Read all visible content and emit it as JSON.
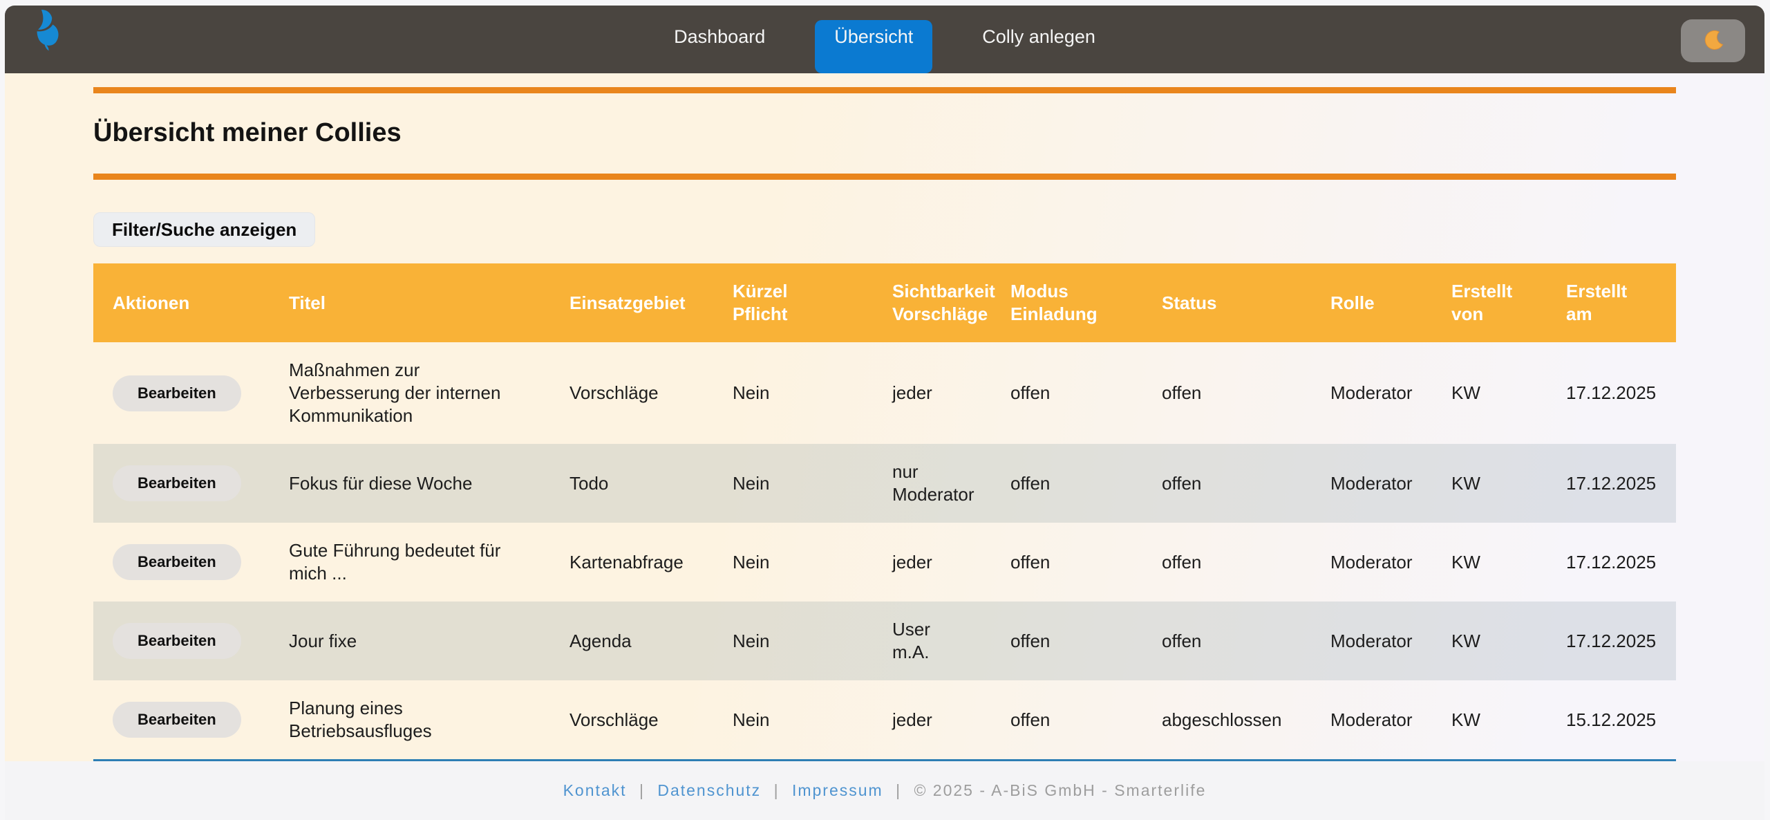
{
  "header": {
    "nav": [
      {
        "label": "Dashboard",
        "active": false
      },
      {
        "label": "Übersicht",
        "active": true
      },
      {
        "label": "Colly anlegen",
        "active": false
      }
    ],
    "logo_icon": "butterfly-icon",
    "theme_toggle_icon": "moon-icon"
  },
  "page": {
    "title": "Übersicht meiner Collies",
    "filter_button_label": "Filter/Suche anzeigen"
  },
  "table": {
    "columns": [
      "Aktionen",
      "Titel",
      "Einsatzgebiet",
      "Kürzel\nPflicht",
      "Sichtbarkeit\nVorschläge",
      "Modus\nEinladung",
      "Status",
      "Rolle",
      "Erstellt\nvon",
      "Erstellt\nam"
    ],
    "action_button_label": "Bearbeiten",
    "rows": [
      {
        "titel": "Maßnahmen zur Verbesserung der internen Kommunikation",
        "einsatzgebiet": "Vorschläge",
        "kuerzel_pflicht": "Nein",
        "sichtbarkeit_vorschlaege": "jeder",
        "modus_einladung": "offen",
        "status": "offen",
        "rolle": "Moderator",
        "erstellt_von": "KW",
        "erstellt_am": "17.12.2025"
      },
      {
        "titel": "Fokus für diese Woche",
        "einsatzgebiet": "Todo",
        "kuerzel_pflicht": "Nein",
        "sichtbarkeit_vorschlaege": "nur Moderator",
        "modus_einladung": "offen",
        "status": "offen",
        "rolle": "Moderator",
        "erstellt_von": "KW",
        "erstellt_am": "17.12.2025"
      },
      {
        "titel": "Gute Führung bedeutet für mich ...",
        "einsatzgebiet": "Kartenabfrage",
        "kuerzel_pflicht": "Nein",
        "sichtbarkeit_vorschlaege": "jeder",
        "modus_einladung": "offen",
        "status": "offen",
        "rolle": "Moderator",
        "erstellt_von": "KW",
        "erstellt_am": "17.12.2025"
      },
      {
        "titel": "Jour fixe",
        "einsatzgebiet": "Agenda",
        "kuerzel_pflicht": "Nein",
        "sichtbarkeit_vorschlaege": "User m.A.",
        "modus_einladung": "offen",
        "status": "offen",
        "rolle": "Moderator",
        "erstellt_von": "KW",
        "erstellt_am": "17.12.2025"
      },
      {
        "titel": "Planung eines Betriebsausfluges",
        "einsatzgebiet": "Vorschläge",
        "kuerzel_pflicht": "Nein",
        "sichtbarkeit_vorschlaege": "jeder",
        "modus_einladung": "offen",
        "status": "abgeschlossen",
        "rolle": "Moderator",
        "erstellt_von": "KW",
        "erstellt_am": "15.12.2025"
      }
    ]
  },
  "footer": {
    "links": [
      "Kontakt",
      "Datenschutz",
      "Impressum"
    ],
    "separator": "|",
    "copyright": "© 2025 - A-BiS GmbH - Smarterlife"
  },
  "colors": {
    "header_bg": "#4a4540",
    "active_tab_blue": "#0b7ad1",
    "table_header_amber": "#f9b237",
    "rule_orange": "#e9851c",
    "table_bottom_blue": "#2d7eb4",
    "content_bg_left": "#fdf3e1",
    "content_bg_right": "#f7f5fa",
    "moon_orange": "#f2a840",
    "logo_blue": "#1689d3",
    "footer_link_blue": "#4f94d0"
  }
}
